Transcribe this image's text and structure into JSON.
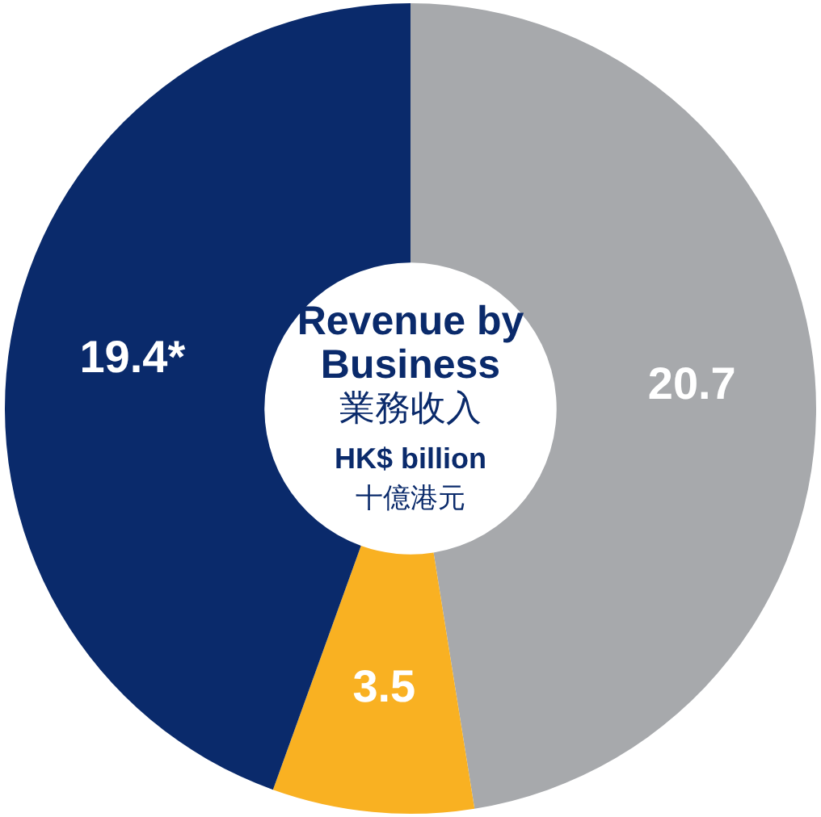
{
  "chart_data": {
    "type": "donut",
    "title": "Revenue by Business",
    "subtitle": "業務收入",
    "annotations": [
      "HK$ billion",
      "十億港元"
    ],
    "categories": [
      null,
      null,
      null
    ],
    "values": [
      20.7,
      3.5,
      19.4
    ],
    "colors": [
      "#a7a9ac",
      "#f9b122",
      "#0a2a6b"
    ],
    "value_labels": [
      "20.7",
      "3.5",
      "19.4*"
    ],
    "legend": false
  }
}
